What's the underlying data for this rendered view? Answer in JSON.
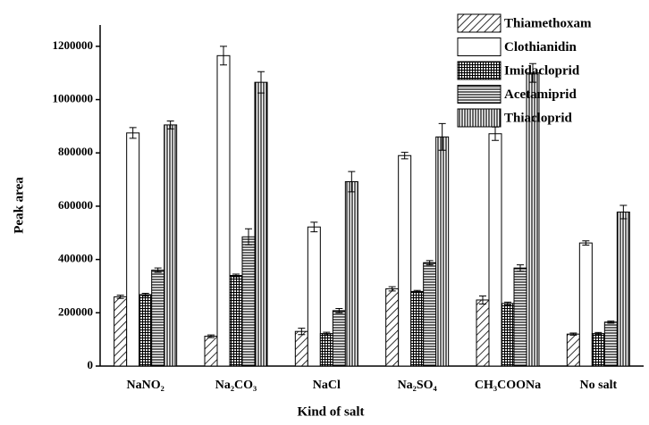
{
  "chart_data": {
    "type": "bar",
    "x_label": "Kind of salt",
    "y_label": "Peak area",
    "categories": [
      "NaNO₂",
      "Na₂CO₃",
      "NaCl",
      "Na₂SO₄",
      "CH₃COONa",
      "No salt"
    ],
    "series": [
      {
        "name": "Thiamethoxam",
        "color": "#000000",
        "pattern": "diagonal",
        "values": [
          260000,
          112000,
          130000,
          290000,
          248000,
          120000
        ],
        "errors": [
          6000,
          5000,
          12000,
          8000,
          15000,
          4000
        ]
      },
      {
        "name": "Clothianidin",
        "color": "#000000",
        "pattern": "none",
        "values": [
          875000,
          1165000,
          522000,
          790000,
          872000,
          462000
        ],
        "errors": [
          20000,
          35000,
          18000,
          12000,
          25000,
          8000
        ]
      },
      {
        "name": "Imidacloprid",
        "color": "#000000",
        "pattern": "crosshatch",
        "values": [
          268000,
          340000,
          122000,
          280000,
          235000,
          122000
        ],
        "errors": [
          5000,
          5000,
          5000,
          4000,
          5000,
          4000
        ]
      },
      {
        "name": "Acetamiprid",
        "color": "#000000",
        "pattern": "horizontal",
        "values": [
          360000,
          485000,
          208000,
          388000,
          368000,
          165000
        ],
        "errors": [
          8000,
          30000,
          8000,
          8000,
          12000,
          4000
        ]
      },
      {
        "name": "Thiacloprid",
        "color": "#000000",
        "pattern": "vertical",
        "values": [
          905000,
          1065000,
          692000,
          860000,
          1100000,
          578000
        ],
        "errors": [
          15000,
          40000,
          38000,
          50000,
          35000,
          25000
        ]
      }
    ],
    "ylim": [
      0,
      1280000
    ],
    "yticks": [
      0,
      200000,
      400000,
      600000,
      800000,
      1000000,
      1200000
    ],
    "grid": false,
    "legend": "top-right"
  }
}
